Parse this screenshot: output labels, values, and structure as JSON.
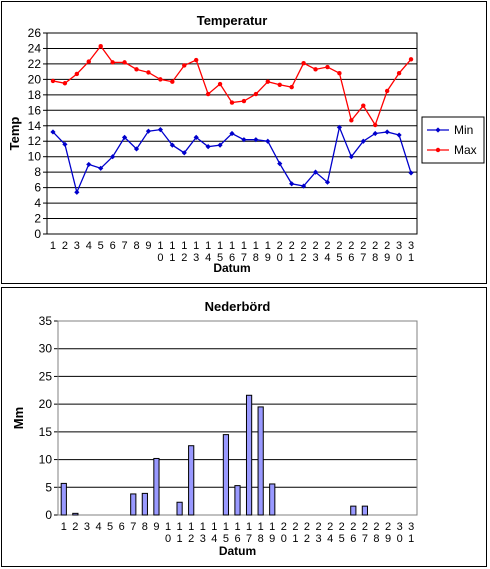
{
  "chart_data": [
    {
      "type": "line",
      "title": "Temperatur",
      "xlabel": "Datum",
      "ylabel": "Temp",
      "ylim": [
        0,
        26
      ],
      "ytick_step": 2,
      "grid": true,
      "legend_placement": "right",
      "categories": [
        "1",
        "2",
        "3",
        "4",
        "5",
        "6",
        "7",
        "8",
        "9",
        "10",
        "11",
        "12",
        "13",
        "14",
        "15",
        "16",
        "17",
        "18",
        "19",
        "20",
        "21",
        "22",
        "23",
        "24",
        "25",
        "26",
        "27",
        "28",
        "29",
        "30",
        "31"
      ],
      "series": [
        {
          "name": "Min",
          "color": "#0000cc",
          "marker": "diamond",
          "values": [
            13.2,
            11.6,
            5.4,
            9.0,
            8.5,
            10.0,
            12.5,
            11.0,
            13.3,
            13.5,
            11.5,
            10.5,
            12.5,
            11.3,
            11.5,
            13.0,
            12.2,
            12.2,
            12.0,
            9.1,
            6.5,
            6.2,
            8.0,
            6.7,
            13.8,
            10.0,
            12.0,
            13.0,
            13.2,
            12.8,
            7.9
          ]
        },
        {
          "name": "Max",
          "color": "#ff0000",
          "marker": "dot",
          "values": [
            19.8,
            19.5,
            20.7,
            22.3,
            24.3,
            22.2,
            22.2,
            21.3,
            20.9,
            20.0,
            19.7,
            21.8,
            22.5,
            18.1,
            19.4,
            17.0,
            17.2,
            18.1,
            19.7,
            19.3,
            19.0,
            22.1,
            21.3,
            21.6,
            20.8,
            14.7,
            16.6,
            14.1,
            18.5,
            20.8,
            22.6
          ]
        }
      ]
    },
    {
      "type": "bar",
      "title": "Nederbörd",
      "xlabel": "Datum",
      "ylabel": "Mm",
      "ylim": [
        0,
        35
      ],
      "ytick_step": 5,
      "grid": true,
      "bar_color": "#9999ff",
      "categories": [
        "1",
        "2",
        "3",
        "4",
        "5",
        "6",
        "7",
        "8",
        "9",
        "10",
        "11",
        "12",
        "13",
        "14",
        "15",
        "16",
        "17",
        "18",
        "19",
        "20",
        "21",
        "22",
        "23",
        "24",
        "25",
        "26",
        "27",
        "28",
        "29",
        "30",
        "31"
      ],
      "values": [
        5.7,
        0.3,
        0,
        0,
        0,
        0,
        3.8,
        3.9,
        10.2,
        0,
        2.3,
        12.5,
        0,
        0,
        14.5,
        5.3,
        21.6,
        19.5,
        5.6,
        0,
        0,
        0,
        0,
        0,
        0,
        1.6,
        1.6,
        0,
        0,
        0,
        0
      ]
    }
  ]
}
